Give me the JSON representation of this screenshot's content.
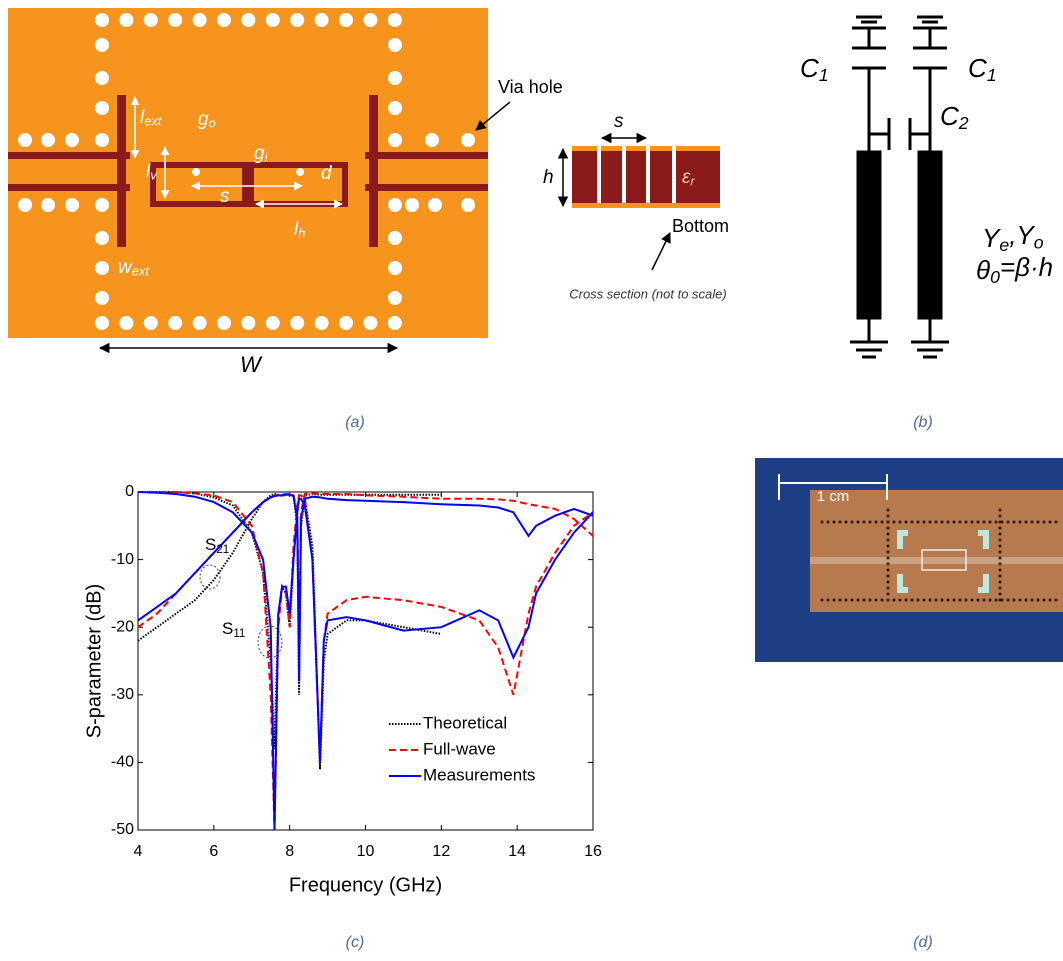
{
  "panel_a": {
    "labels": {
      "l_ext": [
        {
          "t": "l"
        },
        {
          "s": "ext"
        }
      ],
      "g_o": [
        {
          "t": "g"
        },
        {
          "s": "o"
        }
      ],
      "l_v": [
        {
          "t": "l"
        },
        {
          "s": "v"
        }
      ],
      "g_i": [
        {
          "t": "g"
        },
        {
          "s": "i"
        }
      ],
      "d": [
        {
          "t": "d"
        }
      ],
      "s": [
        {
          "t": "s"
        }
      ],
      "l_h": [
        {
          "t": "l"
        },
        {
          "s": "h"
        }
      ],
      "w_ext": [
        {
          "t": "w"
        },
        {
          "s": "ext"
        }
      ],
      "W": [
        {
          "t": "W"
        }
      ]
    },
    "via_hole": "Via hole",
    "cross_h": "h",
    "cross_s": "s",
    "cross_eps": [
      {
        "t": "ε"
      },
      {
        "s": "r"
      }
    ],
    "bottom": "Bottom",
    "cross_section": "Cross section (not to scale)",
    "caption": "(a)"
  },
  "panel_b": {
    "c1_left": [
      {
        "t": "C"
      },
      {
        "s": "1"
      }
    ],
    "c1_right": [
      {
        "t": "C"
      },
      {
        "s": "1"
      }
    ],
    "c2": [
      {
        "t": "C"
      },
      {
        "s": "2"
      }
    ],
    "admittances": [
      {
        "t": "Y"
      },
      {
        "s": "e"
      },
      {
        "t": ",Y"
      },
      {
        "s": "o"
      }
    ],
    "theta": [
      {
        "t": "θ"
      },
      {
        "s": "0"
      },
      {
        "t": "=β·h"
      }
    ],
    "caption": "(b)"
  },
  "chart_data": {
    "type": "line",
    "xlabel": "Frequency (GHz)",
    "ylabel": "S-parameter (dB)",
    "xlim": [
      4,
      16
    ],
    "ylim": [
      -50,
      0
    ],
    "xticks": [
      4,
      6,
      8,
      10,
      12,
      14,
      16
    ],
    "yticks": [
      0,
      -10,
      -20,
      -30,
      -40,
      -50
    ],
    "grid": false,
    "legend": "lower right",
    "annotations": [
      [
        {
          "t": "S"
        },
        {
          "s": "21"
        }
      ],
      [
        {
          "t": "S"
        },
        {
          "s": "11"
        }
      ]
    ],
    "series": [
      {
        "name": "Theoretical",
        "color": "#000000",
        "dash": "dotted",
        "x": [
          4,
          4.5,
          5,
          5.5,
          6,
          6.5,
          7,
          7.3,
          7.5,
          7.6,
          7.7,
          7.8,
          7.9,
          8.0,
          8.1,
          8.2,
          8.25,
          8.3,
          8.4,
          8.6,
          8.8,
          8.9,
          9,
          9.5,
          10,
          11,
          12
        ],
        "s21": [
          -22,
          -20,
          -18,
          -16,
          -13,
          -9,
          -4,
          -1.5,
          -0.5,
          -0.3,
          -0.4,
          -0.6,
          -0.4,
          -0.3,
          -0.5,
          -5,
          -30,
          -5,
          -0.5,
          -0.3,
          -0.4,
          -0.4,
          -0.4,
          -0.4,
          -0.4,
          -0.4,
          -0.4
        ],
        "s11": [
          0,
          0,
          0,
          -0.2,
          -0.8,
          -2,
          -6,
          -12,
          -25,
          -38,
          -18,
          -14,
          -15,
          -20,
          -10,
          -3,
          -0.5,
          -0.5,
          -1,
          -8,
          -41,
          -25,
          -21,
          -19,
          -19,
          -20,
          -21
        ]
      },
      {
        "name": "Full-wave",
        "color": "#ff0000",
        "dash": "dashed",
        "x": [
          4,
          4.5,
          5,
          5.5,
          6,
          6.5,
          7,
          7.3,
          7.5,
          7.6,
          7.7,
          7.8,
          7.9,
          8.0,
          8.1,
          8.2,
          8.25,
          8.3,
          8.4,
          8.6,
          8.8,
          8.9,
          9,
          9.5,
          10,
          11,
          12,
          13,
          13.5,
          13.9,
          14.3,
          14.5,
          15,
          15.5,
          16
        ],
        "s21": [
          -20,
          -18,
          -15,
          -12,
          -9,
          -6,
          -3,
          -1.5,
          -0.8,
          -0.5,
          -0.5,
          -0.4,
          -0.3,
          -0.3,
          -0.5,
          -3,
          -25,
          -3,
          -0.3,
          -0.2,
          -0.3,
          -0.3,
          -0.3,
          -0.3,
          -0.5,
          -0.7,
          -1,
          -1,
          -1.1,
          -1.3,
          -1.8,
          -2,
          -2.5,
          -4,
          -6.5
        ],
        "s11": [
          0,
          0,
          0,
          -0.2,
          -0.5,
          -1.5,
          -5,
          -12,
          -30,
          -50,
          -20,
          -14,
          -15,
          -20,
          -8,
          -2,
          -0.5,
          -0.5,
          -1,
          -10,
          -40,
          -22,
          -18,
          -16,
          -15.5,
          -16,
          -17,
          -19,
          -23,
          -30,
          -18,
          -14,
          -9,
          -5,
          -3
        ]
      },
      {
        "name": "Measurements",
        "color": "#0000ff",
        "dash": "solid",
        "x": [
          4,
          4.5,
          5,
          5.5,
          6,
          6.5,
          7,
          7.3,
          7.5,
          7.6,
          7.7,
          7.8,
          7.9,
          8.0,
          8.1,
          8.2,
          8.25,
          8.3,
          8.4,
          8.6,
          8.8,
          8.9,
          9,
          9.5,
          10,
          11,
          12,
          13,
          13.5,
          13.9,
          14.3,
          14.5,
          15,
          15.5,
          16
        ],
        "s21": [
          -19,
          -17,
          -15,
          -12,
          -9,
          -6,
          -3,
          -1.5,
          -0.8,
          -0.6,
          -0.5,
          -0.5,
          -0.4,
          -0.4,
          -0.6,
          -4,
          -28,
          -4,
          -1,
          -0.7,
          -0.8,
          -0.9,
          -1,
          -1.2,
          -1.3,
          -1.5,
          -1.8,
          -2,
          -2.3,
          -3,
          -6.5,
          -5,
          -3.5,
          -2.5,
          -3.5
        ],
        "s11": [
          0,
          -0.1,
          -0.3,
          -0.7,
          -1.5,
          -3,
          -6,
          -10,
          -20,
          -50,
          -18,
          -14,
          -14,
          -18,
          -10,
          -3,
          -1,
          -1,
          -2,
          -10,
          -40,
          -22,
          -19,
          -18.5,
          -19,
          -20.5,
          -20,
          -17.5,
          -19,
          -24.5,
          -20,
          -15,
          -10,
          -6,
          -3
        ]
      }
    ]
  },
  "caption_c": "(c)",
  "panel_d": {
    "scale": "1 cm",
    "caption": "(d)"
  }
}
